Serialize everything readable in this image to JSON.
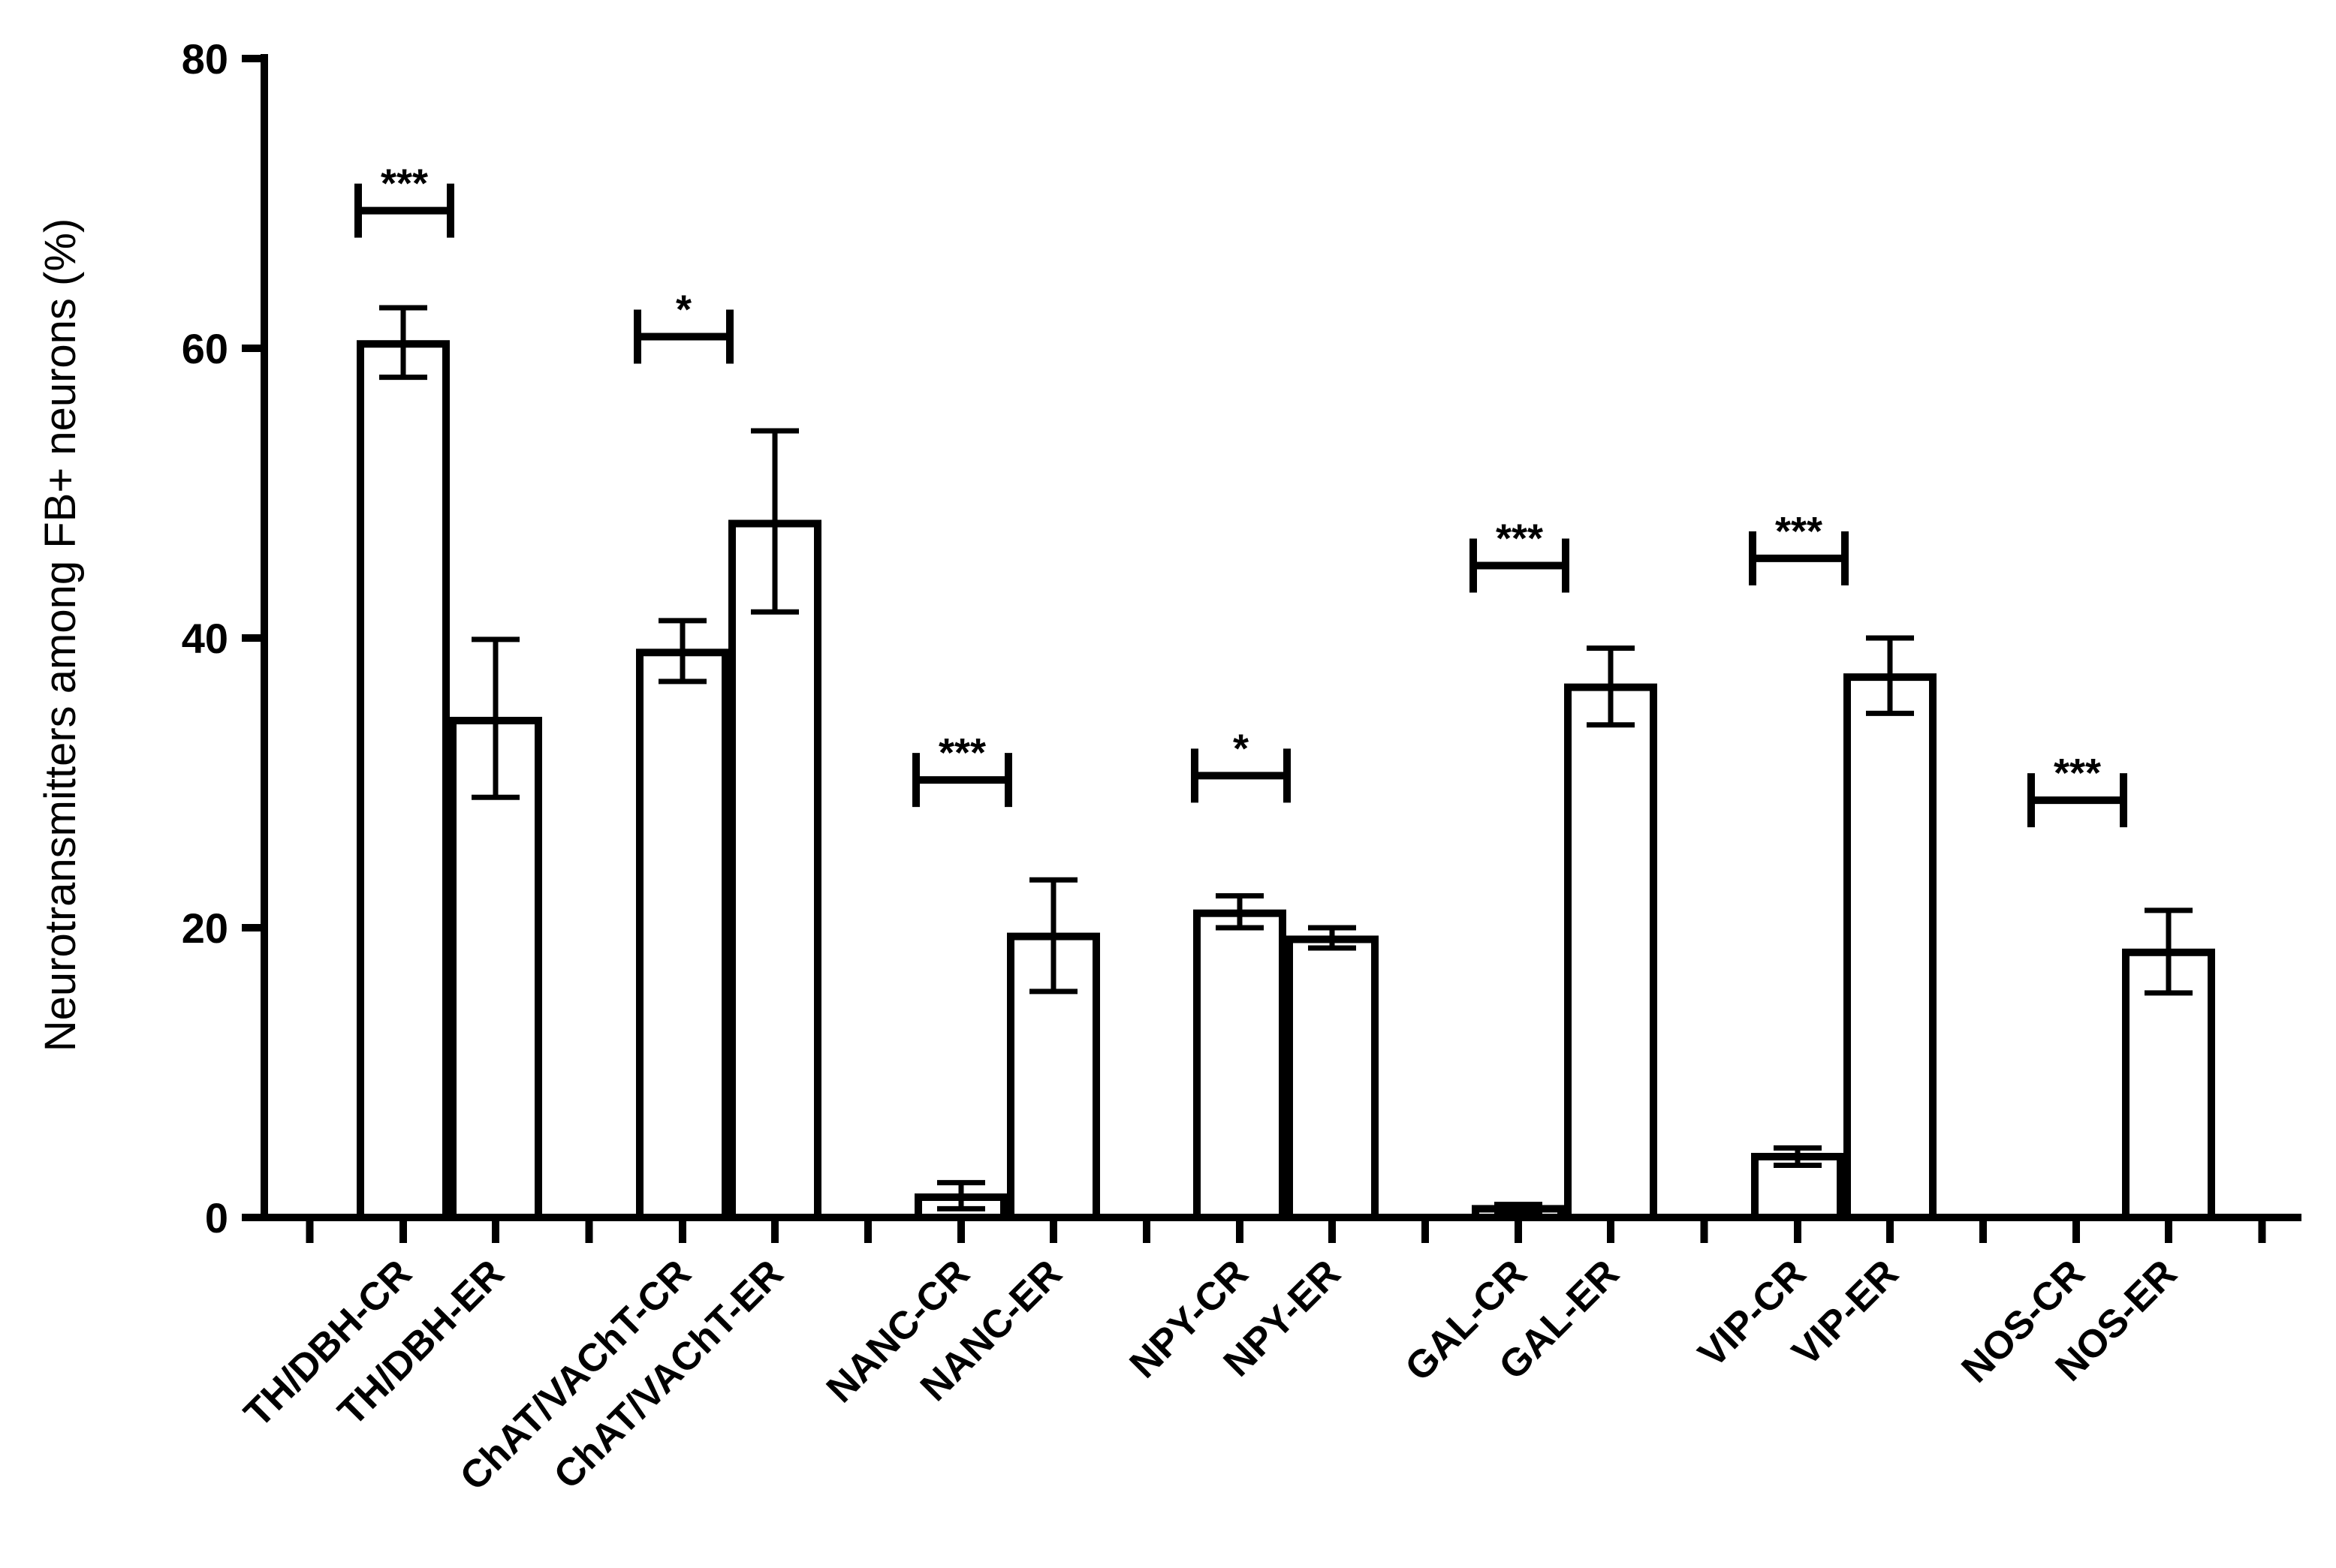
{
  "chart_data": {
    "type": "bar",
    "title": "",
    "xlabel": "",
    "ylabel": "Neurotransmitters among FB+ neurons (%)",
    "ylim": [
      0,
      80
    ],
    "yticks": [
      "0",
      "20",
      "40",
      "60",
      "80"
    ],
    "grid": false,
    "legend": "none",
    "bar_fill": "#ffffff",
    "bar_stroke": "#000000",
    "groups": [
      {
        "bars": [
          {
            "label": "TH/DBH-CR",
            "value": 60.3,
            "err_low": 58.0,
            "err_high": 62.8
          },
          {
            "label": "TH/DBH-ER",
            "value": 34.3,
            "err_low": 29.0,
            "err_high": 39.9
          }
        ],
        "significance": "***",
        "sig_y": 69.5
      },
      {
        "bars": [
          {
            "label": "ChAT/VAChT-CR",
            "value": 39.0,
            "err_low": 37.0,
            "err_high": 41.2
          },
          {
            "label": "ChAT/VAChT-ER",
            "value": 47.9,
            "err_low": 41.8,
            "err_high": 54.3
          }
        ],
        "significance": "*",
        "sig_y": 60.8
      },
      {
        "bars": [
          {
            "label": "NANC-CR",
            "value": 1.4,
            "err_low": 0.6,
            "err_high": 2.4
          },
          {
            "label": "NANC-ER",
            "value": 19.4,
            "err_low": 15.6,
            "err_high": 23.3
          }
        ],
        "significance": "***",
        "sig_y": 30.2
      },
      {
        "bars": [
          {
            "label": "NPY-CR",
            "value": 21.0,
            "err_low": 20.0,
            "err_high": 22.2
          },
          {
            "label": "NPY-ER",
            "value": 19.2,
            "err_low": 18.6,
            "err_high": 20.0
          }
        ],
        "significance": "*",
        "sig_y": 30.5
      },
      {
        "bars": [
          {
            "label": "GAL-CR",
            "value": 0.6,
            "err_low": 0.3,
            "err_high": 0.9
          },
          {
            "label": "GAL-ER",
            "value": 36.6,
            "err_low": 34.0,
            "err_high": 39.3
          }
        ],
        "significance": "***",
        "sig_y": 45.0
      },
      {
        "bars": [
          {
            "label": "VIP-CR",
            "value": 4.2,
            "err_low": 3.6,
            "err_high": 4.8
          },
          {
            "label": "VIP-ER",
            "value": 37.3,
            "err_low": 34.8,
            "err_high": 40.0
          }
        ],
        "significance": "***",
        "sig_y": 45.5
      },
      {
        "bars": [
          {
            "label": "NOS-CR",
            "value": 0,
            "err_low": 0,
            "err_high": 0
          },
          {
            "label": "NOS-ER",
            "value": 18.3,
            "err_low": 15.5,
            "err_high": 21.2
          }
        ],
        "significance": "***",
        "sig_y": 28.8
      }
    ]
  }
}
